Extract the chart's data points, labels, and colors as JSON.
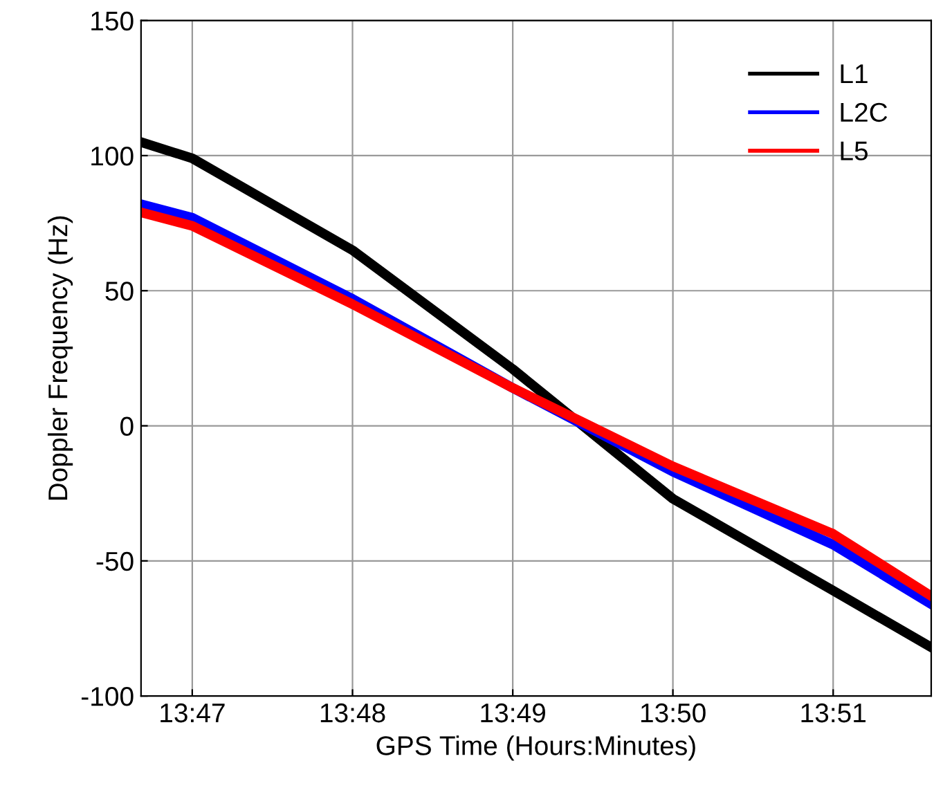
{
  "chart_data": {
    "type": "line",
    "xlabel": "GPS Time (Hours:Minutes)",
    "ylabel": "Doppler Frequency (Hz)",
    "x": [
      13.778,
      13.78333,
      13.8,
      13.81667,
      13.83333,
      13.85,
      13.8602
    ],
    "series": [
      {
        "name": "L1",
        "color": "#000000",
        "values": [
          105,
          99,
          65,
          21,
          -27,
          -61,
          -82
        ]
      },
      {
        "name": "L2C",
        "color": "#0000ff",
        "values": [
          82,
          77,
          47,
          14,
          -17,
          -44,
          -66
        ]
      },
      {
        "name": "L5",
        "color": "#ff0000",
        "values": [
          79,
          74,
          45,
          14,
          -15,
          -40,
          -63
        ]
      }
    ],
    "xlim": [
      13.778,
      13.8602
    ],
    "xticks": [
      {
        "value": 13.78333,
        "label": "13:47"
      },
      {
        "value": 13.8,
        "label": "13:48"
      },
      {
        "value": 13.81667,
        "label": "13:49"
      },
      {
        "value": 13.83333,
        "label": "13:50"
      },
      {
        "value": 13.85,
        "label": "13:51"
      }
    ],
    "ylim": [
      -100,
      150
    ],
    "yticks": [
      -100,
      -50,
      0,
      50,
      100,
      150
    ],
    "grid": true,
    "legend": "top right",
    "line_style": "solid",
    "marker": "none"
  }
}
